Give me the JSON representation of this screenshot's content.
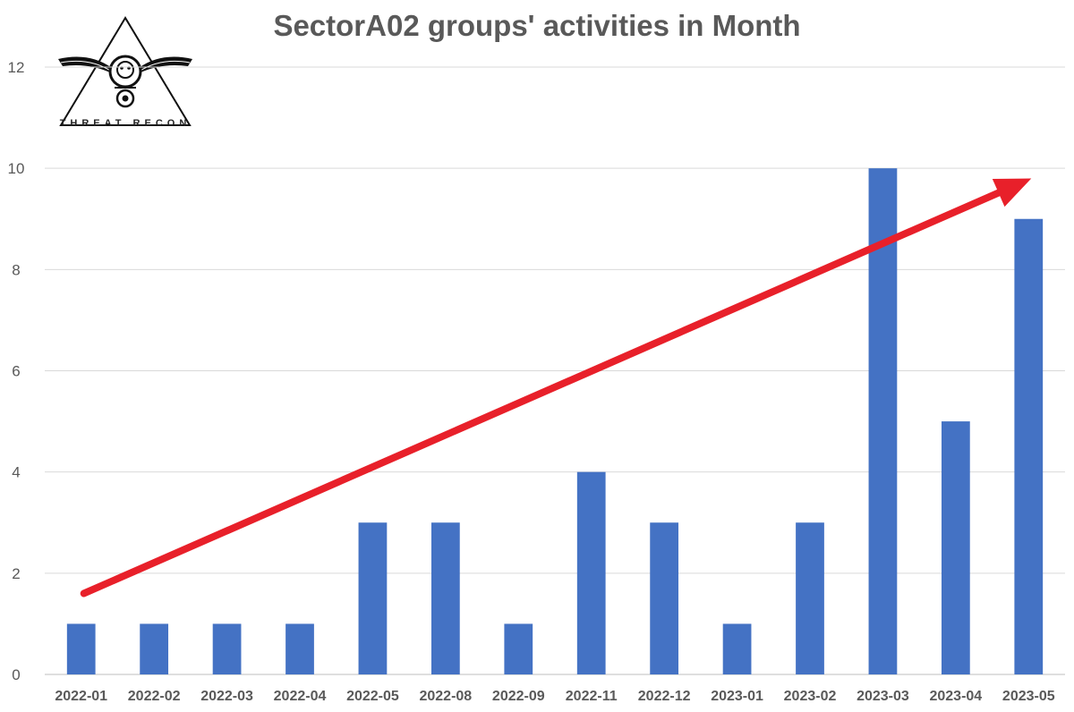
{
  "chart_data": {
    "type": "bar",
    "title": "SectorA02 groups' activities in Month",
    "categories": [
      "2022-01",
      "2022-02",
      "2022-03",
      "2022-04",
      "2022-05",
      "2022-08",
      "2022-09",
      "2022-11",
      "2022-12",
      "2023-01",
      "2023-02",
      "2023-03",
      "2023-04",
      "2023-05"
    ],
    "values": [
      1,
      1,
      1,
      1,
      3,
      3,
      1,
      4,
      3,
      1,
      3,
      10,
      5,
      9
    ],
    "ylim": [
      0,
      12
    ],
    "yticks": [
      0,
      2,
      4,
      6,
      8,
      10,
      12
    ],
    "grid": true,
    "bar_color": "#4472C4",
    "trend_arrow": {
      "color": "#E8202A",
      "from": {
        "category": "2022-01",
        "y": 1.6
      },
      "to": {
        "category": "2023-05",
        "y": 9.8
      }
    }
  },
  "logo": {
    "name": "threat-recon-logo",
    "text": "THREAT RECON"
  }
}
